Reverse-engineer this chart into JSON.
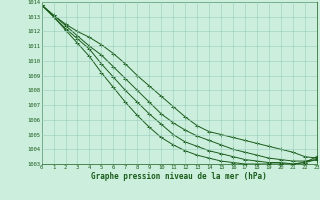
{
  "title": "Graphe pression niveau de la mer (hPa)",
  "bg_color": "#cceedd",
  "grid_color": "#99ccbb",
  "line_color": "#1a5c1a",
  "xlim": [
    0,
    23
  ],
  "ylim": [
    1003,
    1014
  ],
  "xticks": [
    0,
    1,
    2,
    3,
    4,
    5,
    6,
    7,
    8,
    9,
    10,
    11,
    12,
    13,
    14,
    15,
    16,
    17,
    18,
    19,
    20,
    21,
    22,
    23
  ],
  "yticks": [
    1003,
    1004,
    1005,
    1006,
    1007,
    1008,
    1009,
    1010,
    1011,
    1012,
    1013,
    1014
  ],
  "series": [
    [
      1013.8,
      1013.1,
      1012.5,
      1012.0,
      1011.6,
      1011.1,
      1010.5,
      1009.8,
      1009.0,
      1008.3,
      1007.6,
      1006.9,
      1006.2,
      1005.6,
      1005.2,
      1005.0,
      1004.8,
      1004.6,
      1004.4,
      1004.2,
      1004.0,
      1003.8,
      1003.5,
      1003.4
    ],
    [
      1013.8,
      1013.1,
      1012.4,
      1011.7,
      1011.0,
      1010.4,
      1009.6,
      1008.8,
      1008.0,
      1007.2,
      1006.4,
      1005.8,
      1005.3,
      1004.9,
      1004.6,
      1004.3,
      1004.0,
      1003.8,
      1003.6,
      1003.4,
      1003.3,
      1003.2,
      1003.2,
      1003.3
    ],
    [
      1013.8,
      1013.0,
      1012.2,
      1011.5,
      1010.8,
      1009.8,
      1008.9,
      1008.0,
      1007.2,
      1006.4,
      1005.7,
      1005.0,
      1004.5,
      1004.2,
      1003.9,
      1003.7,
      1003.5,
      1003.3,
      1003.2,
      1003.1,
      1003.1,
      1003.0,
      1003.1,
      1003.3
    ],
    [
      1013.8,
      1013.0,
      1012.1,
      1011.2,
      1010.3,
      1009.2,
      1008.2,
      1007.2,
      1006.3,
      1005.5,
      1004.8,
      1004.3,
      1003.9,
      1003.6,
      1003.4,
      1003.2,
      1003.1,
      1003.0,
      1003.0,
      1003.0,
      1003.0,
      1003.0,
      1003.1,
      1003.5
    ]
  ]
}
